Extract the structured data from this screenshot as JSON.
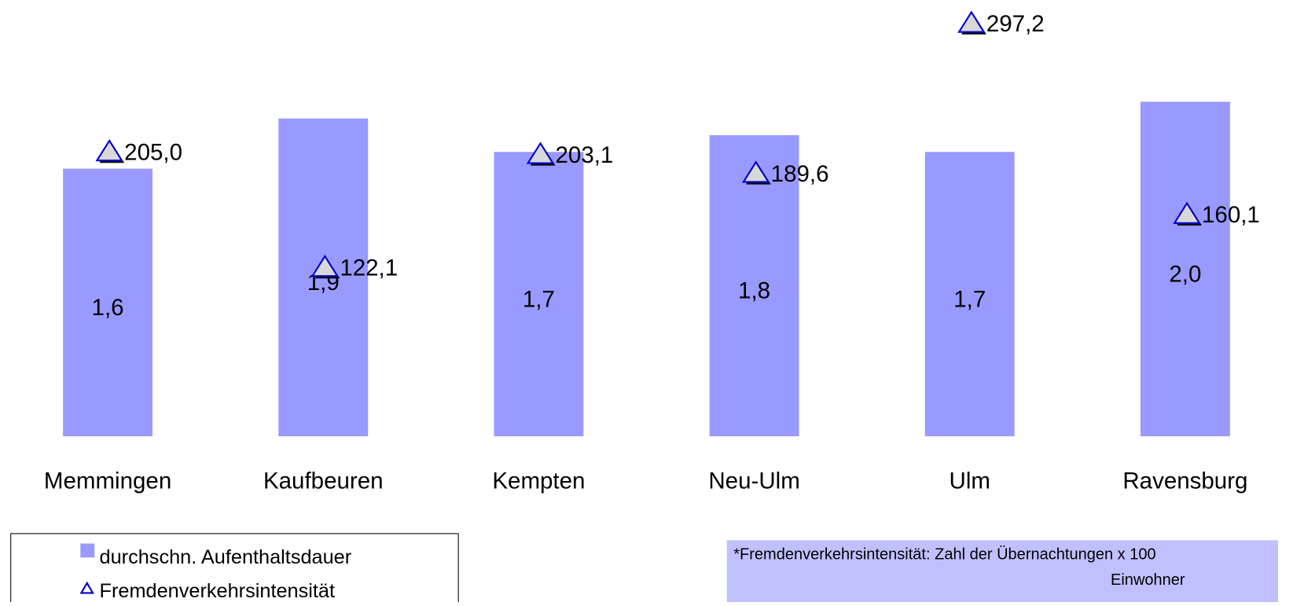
{
  "chart_data": {
    "type": "bar_marker",
    "categories": [
      "Memmingen",
      "Kaufbeuren",
      "Kempten",
      "Neu-Ulm",
      "Ulm",
      "Ravensburg"
    ],
    "series": [
      {
        "name": "durchschn. Aufenthaltsdauer",
        "color": "#9999ff",
        "type": "bar",
        "values": [
          1.6,
          1.9,
          1.7,
          1.8,
          1.7,
          2.0
        ],
        "value_labels": [
          "1,6",
          "1,9",
          "1,7",
          "1,8",
          "1,7",
          "2,0"
        ]
      },
      {
        "name": "Fremdenverkehrsintensität",
        "color": "#0000cc",
        "type": "marker",
        "axis": "y2",
        "values": [
          205.0,
          122.1,
          203.1,
          189.6,
          297.2,
          160.1
        ],
        "value_labels": [
          "205,0",
          "122,1",
          "203,1",
          "189,6",
          "297,2",
          "160,1"
        ]
      }
    ],
    "ylim": [
      0,
      2.5
    ],
    "y2lim": [
      0,
      300
    ],
    "note": [
      "*Fremdenverkehrsintensität:  Zahl der Übernachtungen x 100",
      "Einwohner"
    ]
  }
}
